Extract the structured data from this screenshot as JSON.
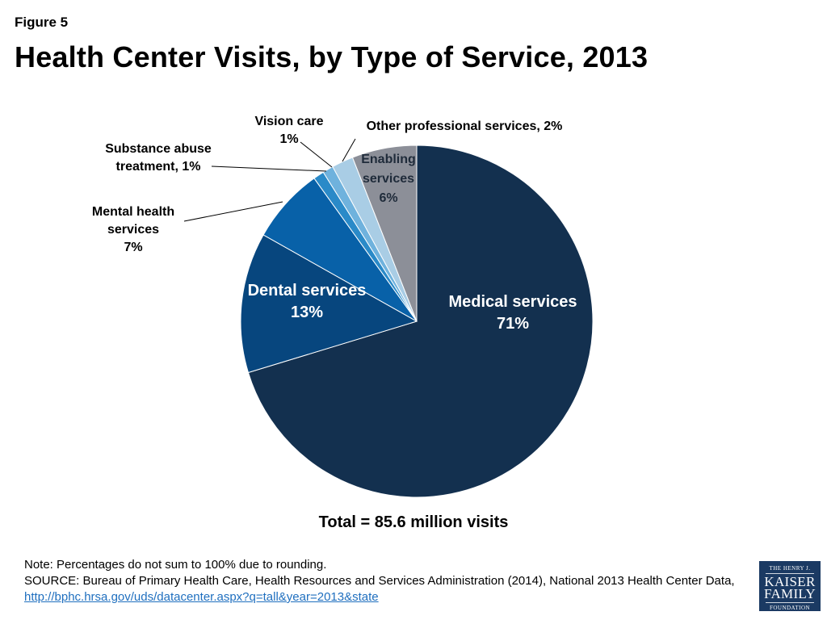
{
  "figure_label": "Figure 5",
  "title": "Health Center Visits, by Type of Service, 2013",
  "chart_data": {
    "type": "pie",
    "slices": [
      {
        "name": "Medical services",
        "value": 71,
        "label_lines": [
          "Medical services",
          "71%"
        ],
        "color": "#13304f"
      },
      {
        "name": "Dental services",
        "value": 13,
        "label_lines": [
          "Dental services",
          "13%"
        ],
        "color": "#07467e"
      },
      {
        "name": "Mental health services",
        "value": 7,
        "label_lines": [
          "Mental health",
          "services",
          "7%"
        ],
        "color": "#0861a8"
      },
      {
        "name": "Substance abuse treatment",
        "value": 1,
        "label_lines": [
          "Substance abuse",
          "treatment, 1%"
        ],
        "color": "#2a8ac8"
      },
      {
        "name": "Vision care",
        "value": 1,
        "label_lines": [
          "Vision care",
          "1%"
        ],
        "color": "#6fb2dd"
      },
      {
        "name": "Other professional services",
        "value": 2,
        "label_lines": [
          "Other professional services, 2%"
        ],
        "color": "#a9cde5"
      },
      {
        "name": "Enabling services",
        "value": 6,
        "label_lines": [
          "Enabling",
          "services",
          "6%"
        ],
        "color": "#8c8f98"
      }
    ]
  },
  "total_text": "Total = 85.6 million visits",
  "note": "Note: Percentages do not sum to 100% due to rounding.",
  "source": "SOURCE: Bureau of Primary Health Care, Health Resources and Services Administration (2014), National 2013 Health Center Data,",
  "source_link": "http://bphc.hrsa.gov/uds/datacenter.aspx?q=tall&year=2013&state",
  "logo": {
    "line1": "THE HENRY J.",
    "line2": "KAISER",
    "line3": "FAMILY",
    "line4": "FOUNDATION"
  }
}
